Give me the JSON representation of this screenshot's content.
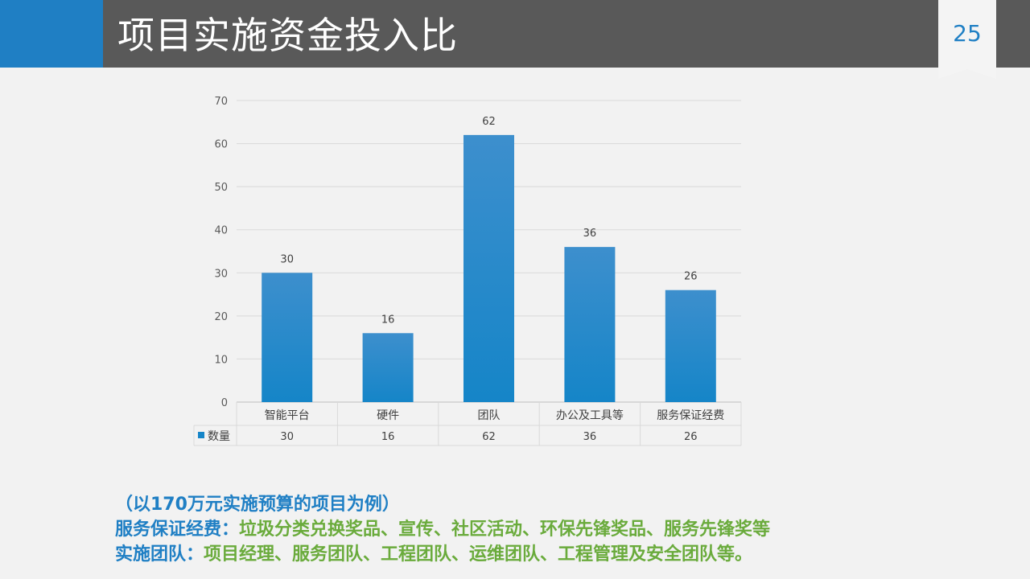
{
  "header": {
    "title": "项目实施资金投入比",
    "page_number": "25"
  },
  "chart_data": {
    "type": "bar",
    "categories": [
      "智能平台",
      "硬件",
      "团队",
      "办公及工具等",
      "服务保证经费"
    ],
    "series": [
      {
        "name": "数量",
        "values": [
          30,
          16,
          62,
          36,
          26
        ]
      }
    ],
    "yticks": [
      0,
      10,
      20,
      30,
      40,
      50,
      60,
      70
    ],
    "ylim": [
      0,
      70
    ],
    "grid": true,
    "data_table": true,
    "bar_color": "#1585c8",
    "bar_color_top": "#3d8fcd"
  },
  "notes": {
    "line1": "（以170万元实施预算的项目为例）",
    "line2_label": "服务保证经费：",
    "line2_text": "垃圾分类兑换奖品、宣传、社区活动、环保先锋奖品、服务先锋奖等",
    "line3_label": "实施团队：",
    "line3_text": "项目经理、服务团队、工程团队、运维团队、工程管理及安全团队等。"
  },
  "colors": {
    "header_bg": "#595959",
    "accent_blue": "#1f7fc4",
    "note_green": "#6aab3c"
  }
}
